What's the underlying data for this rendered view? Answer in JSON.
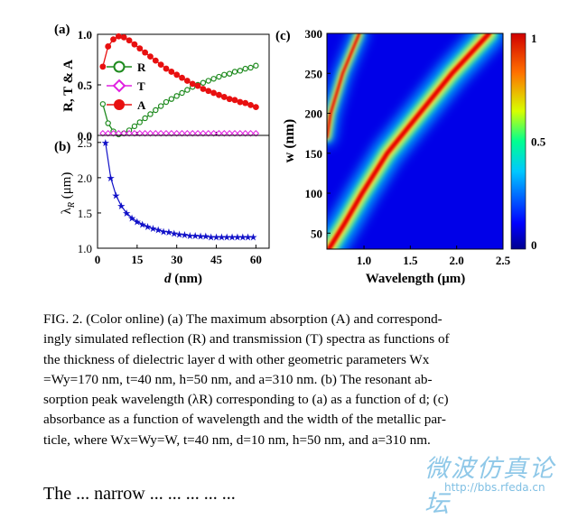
{
  "panel_labels": {
    "a": "(a)",
    "b": "(b)",
    "c": "(c)"
  },
  "chart_data": [
    {
      "id": "a",
      "type": "line",
      "ylabel": "R, T & A",
      "xlabel": "",
      "xlim": [
        0,
        65
      ],
      "ylim": [
        0,
        1.0
      ],
      "yticks": [
        "0.0",
        "0.5",
        "1.0"
      ],
      "yticks_vals": [
        0,
        0.5,
        1.0
      ],
      "legend": {
        "placement": "center-left",
        "entries": [
          "R",
          "T",
          "A"
        ]
      },
      "series": [
        {
          "name": "R",
          "color": "#1e8a1e",
          "marker": "open-circle",
          "x": [
            2,
            4,
            6,
            8,
            10,
            12,
            14,
            16,
            18,
            20,
            22,
            24,
            26,
            28,
            30,
            32,
            34,
            36,
            38,
            40,
            42,
            44,
            46,
            48,
            50,
            52,
            54,
            56,
            58,
            60
          ],
          "values": [
            0.31,
            0.12,
            0.04,
            0.01,
            0.02,
            0.05,
            0.09,
            0.13,
            0.17,
            0.21,
            0.25,
            0.29,
            0.33,
            0.36,
            0.39,
            0.42,
            0.45,
            0.48,
            0.5,
            0.52,
            0.54,
            0.56,
            0.58,
            0.6,
            0.61,
            0.63,
            0.64,
            0.66,
            0.67,
            0.69
          ]
        },
        {
          "name": "T",
          "color": "#e020e0",
          "marker": "open-diamond",
          "x": [
            2,
            4,
            6,
            8,
            10,
            12,
            14,
            16,
            18,
            20,
            22,
            24,
            26,
            28,
            30,
            32,
            34,
            36,
            38,
            40,
            42,
            44,
            46,
            48,
            50,
            52,
            54,
            56,
            58,
            60
          ],
          "values": [
            0.02,
            0.02,
            0.02,
            0.02,
            0.02,
            0.02,
            0.02,
            0.02,
            0.02,
            0.02,
            0.02,
            0.02,
            0.02,
            0.02,
            0.02,
            0.02,
            0.02,
            0.02,
            0.02,
            0.02,
            0.02,
            0.02,
            0.02,
            0.02,
            0.02,
            0.02,
            0.02,
            0.02,
            0.02,
            0.02
          ]
        },
        {
          "name": "A",
          "color": "#e81010",
          "marker": "filled-circle",
          "x": [
            2,
            4,
            6,
            8,
            10,
            12,
            14,
            16,
            18,
            20,
            22,
            24,
            26,
            28,
            30,
            32,
            34,
            36,
            38,
            40,
            42,
            44,
            46,
            48,
            50,
            52,
            54,
            56,
            58,
            60
          ],
          "values": [
            0.68,
            0.88,
            0.95,
            0.98,
            0.97,
            0.94,
            0.9,
            0.86,
            0.82,
            0.78,
            0.74,
            0.7,
            0.66,
            0.63,
            0.6,
            0.57,
            0.54,
            0.51,
            0.49,
            0.46,
            0.44,
            0.42,
            0.4,
            0.38,
            0.36,
            0.35,
            0.33,
            0.32,
            0.3,
            0.28
          ]
        }
      ]
    },
    {
      "id": "b",
      "type": "line",
      "ylabel": "λR (μm)",
      "xlabel": "d (nm)",
      "xlim": [
        0,
        65
      ],
      "ylim": [
        1.0,
        2.6
      ],
      "xticks": [
        "0",
        "15",
        "30",
        "45",
        "60"
      ],
      "xticks_vals": [
        0,
        15,
        30,
        45,
        60
      ],
      "yticks": [
        "1.0",
        "1.5",
        "2.0",
        "2.5"
      ],
      "yticks_vals": [
        1.0,
        1.5,
        2.0,
        2.5
      ],
      "series": [
        {
          "name": "",
          "color": "#1010c8",
          "marker": "star",
          "x": [
            3,
            5,
            7,
            9,
            11,
            13,
            15,
            17,
            19,
            21,
            23,
            25,
            27,
            29,
            31,
            33,
            35,
            37,
            39,
            41,
            43,
            45,
            47,
            49,
            51,
            53,
            55,
            57,
            59
          ],
          "values": [
            2.5,
            2.0,
            1.75,
            1.6,
            1.5,
            1.43,
            1.38,
            1.34,
            1.31,
            1.28,
            1.26,
            1.24,
            1.23,
            1.21,
            1.2,
            1.19,
            1.18,
            1.18,
            1.17,
            1.17,
            1.16,
            1.16,
            1.16,
            1.16,
            1.16,
            1.16,
            1.16,
            1.16,
            1.16
          ]
        }
      ]
    },
    {
      "id": "c",
      "type": "heatmap",
      "xlabel": "Wavelength (μm)",
      "ylabel": "w (nm)",
      "xlim": [
        0.6,
        2.5
      ],
      "ylim": [
        30,
        300
      ],
      "xticks": [
        "1.0",
        "1.5",
        "2.0",
        "2.5"
      ],
      "xticks_vals": [
        1.0,
        1.5,
        2.0,
        2.5
      ],
      "yticks": [
        "50",
        "100",
        "150",
        "200",
        "250",
        "300"
      ],
      "yticks_vals": [
        50,
        100,
        150,
        200,
        250,
        300
      ],
      "colorbar": {
        "range": [
          0,
          1
        ],
        "ticks": [
          "0",
          "0.5",
          "1"
        ],
        "ticks_vals": [
          0,
          0.5,
          1
        ],
        "colormap": "jet"
      },
      "ridges": [
        {
          "name": "",
          "w": [
            30,
            60,
            100,
            150,
            200,
            250,
            300
          ],
          "wavelength": [
            0.62,
            0.78,
            0.98,
            1.25,
            1.6,
            1.95,
            2.35
          ]
        },
        {
          "name": "",
          "w": [
            170,
            200,
            250,
            300
          ],
          "wavelength": [
            0.6,
            0.64,
            0.77,
            0.95
          ]
        }
      ]
    }
  ],
  "caption": {
    "lines": [
      "FIG. 2. (Color online) (a) The maximum absorption (A) and correspond-",
      "ingly simulated reflection (R) and transmission (T) spectra as functions of",
      "the thickness of dielectric layer d with other geometric parameters Wx",
      "=Wy=170 nm, t=40 nm, h=50 nm, and a=310 nm. (b) The resonant ab-",
      "sorption peak wavelength (λR) corresponding to (a) as a function of d; (c)",
      "absorbance as a function of wavelength and the width of the metallic par-",
      "ticle, where Wx=Wy=W, t=40 nm, d=10 nm, h=50 nm, and a=310 nm."
    ]
  },
  "watermark": {
    "text": "微波仿真论坛",
    "url": "http://bbs.rfeda.cn"
  },
  "bottom_text": "The ... narrow ... ... ... ... ..."
}
